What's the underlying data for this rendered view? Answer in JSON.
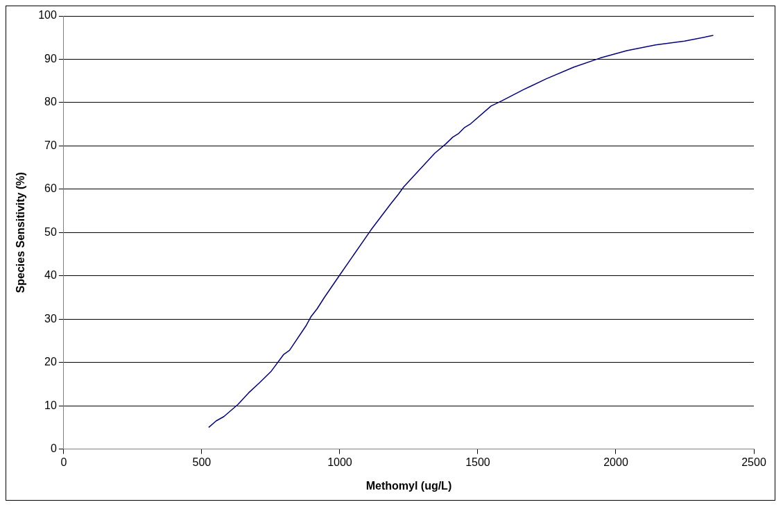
{
  "chart_data": {
    "type": "line",
    "xlabel": "Methomyl (ug/L)",
    "ylabel": "Species Sensitivity (%)",
    "xlim": [
      0,
      2500
    ],
    "xticks": [
      0,
      500,
      1000,
      1500,
      2000,
      2500
    ],
    "ylim": [
      0,
      100
    ],
    "yticks": [
      0,
      10,
      20,
      30,
      40,
      50,
      60,
      70,
      80,
      90,
      100
    ],
    "grid": "y",
    "legend": false,
    "marker": "none",
    "line_style": "solid",
    "series": [
      {
        "color": "#000080",
        "x": [
          525,
          552,
          580,
          631,
          670,
          709,
          752,
          796,
          818,
          879,
          896,
          918,
          944,
          1000,
          1113,
          1183,
          1213,
          1231,
          1344,
          1383,
          1409,
          1431,
          1453,
          1474,
          1548,
          1587,
          1666,
          1748,
          1848,
          1944,
          2040,
          2144,
          2249,
          2353
        ],
        "values": [
          5.0,
          6.5,
          7.5,
          10.3,
          13.0,
          15.3,
          18.0,
          21.8,
          22.8,
          28.6,
          30.6,
          32.4,
          35.0,
          40.2,
          50.6,
          56.5,
          58.9,
          60.5,
          68.3,
          70.4,
          72.0,
          72.9,
          74.3,
          75.1,
          79.2,
          80.4,
          83.0,
          85.5,
          88.2,
          90.3,
          92.0,
          93.3,
          94.2,
          95.5
        ]
      }
    ]
  }
}
